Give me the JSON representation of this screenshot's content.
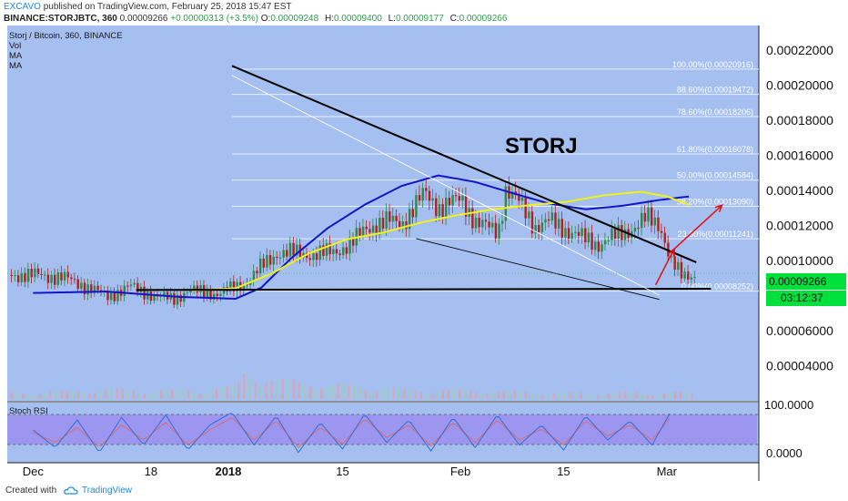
{
  "header": {
    "publisher": "EXCAVO",
    "published_text": "published on TradingView.com, February 25, 2018 15:47 EST",
    "symbol": "BINANCE:STORJBTC, 360",
    "last": "0.00009266",
    "change": "+0.00000313 (+3.5%)",
    "o_label": "O:",
    "o_value": "0.00009248",
    "h_label": "H:",
    "h_value": "0.00009400",
    "l_label": "L:",
    "l_value": "0.00009177",
    "c_label": "C:",
    "c_value": "0.00009266"
  },
  "legend": {
    "pair": "Storj / Bitcoin, 360, BINANCE",
    "vol": "Vol",
    "ma1": "MA",
    "ma2": "MA"
  },
  "rsi": {
    "label": "Stoch RSI",
    "scale_top": "100.0000",
    "scale_bottom": "0.0000"
  },
  "badges": {
    "price": "0.00009266",
    "countdown": "03:12:37"
  },
  "annotation": {
    "text": "STORJ"
  },
  "footer": {
    "created_with": "Created with",
    "brand": "TradingView"
  },
  "chart_data": {
    "type": "line",
    "title": "Storj / Bitcoin, 360, BINANCE",
    "xlabel": "",
    "ylabel": "",
    "ylim": [
      2e-05,
      0.000234
    ],
    "y_ticks": [
      "0.00022000",
      "0.00020000",
      "0.00018000",
      "0.00016000",
      "0.00014000",
      "0.00012000",
      "0.00010000",
      "0.00006000",
      "0.00004000"
    ],
    "x_tick_labels": [
      "Dec",
      "18",
      "2018",
      "15",
      "Feb",
      "15",
      "Mar",
      "19"
    ],
    "grid": false,
    "colors": {
      "panel_bg": "#a4bff0",
      "up": "#2a8a4a",
      "down": "#b41e1e",
      "ma_slow": "#1515c8",
      "ma_fast": "#f2f21a",
      "rsi_band": "#9c8ef0"
    },
    "price_path": {
      "x": [
        0,
        8,
        15,
        20,
        26,
        33,
        38,
        42,
        50,
        55,
        58,
        62,
        66,
        70,
        76,
        82,
        86,
        90,
        96,
        100,
        106,
        110,
        116,
        120,
        126,
        128,
        132,
        136,
        140,
        144,
        147,
        150,
        153,
        156,
        160,
        163,
        166,
        170,
        173,
        176,
        180,
        184
      ],
      "values": [
        9.17e-05,
        9.03e-05,
        8.43e-05,
        7.96e-05,
        8.52e-05,
        7.96e-05,
        7.82e-05,
        8.29e-05,
        8.1e-05,
        8.51e-05,
        8.82e-05,
        9.72e-05,
        0.0001042,
        0.0001045,
        0.0001032,
        0.0001055,
        0.0001093,
        0.0001185,
        0.0001224,
        0.0001215,
        0.0001385,
        0.0001302,
        0.0001352,
        0.0001215,
        0.0001165,
        0.0001405,
        0.0001325,
        0.0001192,
        0.0001225,
        0.0001178,
        0.0001152,
        0.0001115,
        0.000109,
        0.0001128,
        0.0001152,
        0.0001195,
        0.0001242,
        0.0001195,
        9.95e-05,
        9.01e-05,
        9.22e-05,
        9.28e-05
      ]
    },
    "ma_slow": {
      "x": [
        0,
        20,
        40,
        55,
        62,
        70,
        80,
        90,
        100,
        110,
        120,
        130,
        140,
        150,
        160,
        170,
        178
      ],
      "values": [
        8.15e-05,
        8.23e-05,
        7.92e-05,
        7.82e-05,
        8.46e-05,
        0.0001012,
        0.0001185,
        0.0001318,
        0.0001425,
        0.0001485,
        0.0001448,
        0.0001385,
        0.0001325,
        0.0001292,
        0.0001312,
        0.0001345,
        0.0001365
      ]
    },
    "ma_fast": {
      "x": [
        43,
        55,
        65,
        75,
        85,
        95,
        105,
        115,
        125,
        135,
        145,
        155,
        165,
        172,
        178
      ],
      "values": [
        8.28e-05,
        8.42e-05,
        9.28e-05,
        0.0001042,
        0.000112,
        0.0001159,
        0.0001215,
        0.0001258,
        0.0001292,
        0.0001316,
        0.0001335,
        0.0001372,
        0.0001392,
        0.0001365,
        0.0001318
      ]
    },
    "fibonacci": [
      {
        "label": "100.00%(0.00020916)",
        "value": 0.00020916
      },
      {
        "label": "88.60%(0.00019472)",
        "value": 0.00019472
      },
      {
        "label": "78.60%(0.00018206)",
        "value": 0.00018206
      },
      {
        "label": "61.80%(0.00016078)",
        "value": 0.00016078
      },
      {
        "label": "50.00%(0.00014584)",
        "value": 0.00014584
      },
      {
        "label": "38.20%(0.00013090)",
        "value": 0.0001309
      },
      {
        "label": "23.60%(0.00011241)",
        "value": 0.00011241
      },
      {
        "label": "0.00%(0.00008252)",
        "value": 8.252e-05
      }
    ],
    "trendlines": [
      {
        "name": "descending-resistance",
        "x": [
          54,
          180
        ],
        "values": [
          0.000211,
          9.9e-05
        ]
      },
      {
        "name": "horizontal-support",
        "x": [
          28,
          184
        ],
        "values": [
          8.32e-05,
          8.39e-05
        ]
      },
      {
        "name": "falling-wedge-lower",
        "x": [
          104,
          170
        ],
        "values": [
          0.0001125,
          7.78e-05
        ]
      },
      {
        "name": "thin-descending",
        "x": [
          54,
          170
        ],
        "values": [
          0.0002055,
          8.02e-05
        ]
      }
    ],
    "projection": {
      "x": [
        169,
        174,
        187
      ],
      "values": [
        8.61e-05,
        0.0001065,
        0.0001315
      ]
    },
    "volume": {
      "x": [
        0,
        20,
        45,
        55,
        57,
        65,
        75,
        85,
        100,
        120,
        140,
        160,
        180
      ],
      "values": [
        0.2,
        0.3,
        0.25,
        0.4,
        0.8,
        0.6,
        0.5,
        0.4,
        0.3,
        0.25,
        0.2,
        0.2,
        0.2
      ]
    },
    "stoch_rsi": {
      "x": [
        0,
        6,
        12,
        18,
        24,
        30,
        36,
        42,
        48,
        54,
        60,
        66,
        72,
        78,
        84,
        90,
        96,
        102,
        108,
        114,
        120,
        126,
        132,
        138,
        144,
        150,
        156,
        162,
        168,
        173
      ],
      "k": [
        60,
        25,
        80,
        15,
        85,
        30,
        90,
        20,
        70,
        95,
        30,
        88,
        15,
        75,
        22,
        92,
        35,
        80,
        18,
        85,
        25,
        90,
        30,
        70,
        20,
        88,
        40,
        78,
        30,
        95
      ],
      "d": [
        55,
        35,
        65,
        25,
        70,
        40,
        75,
        30,
        60,
        85,
        40,
        78,
        25,
        65,
        32,
        82,
        45,
        70,
        28,
        75,
        35,
        80,
        40,
        62,
        30,
        78,
        48,
        70,
        40,
        85
      ]
    }
  }
}
